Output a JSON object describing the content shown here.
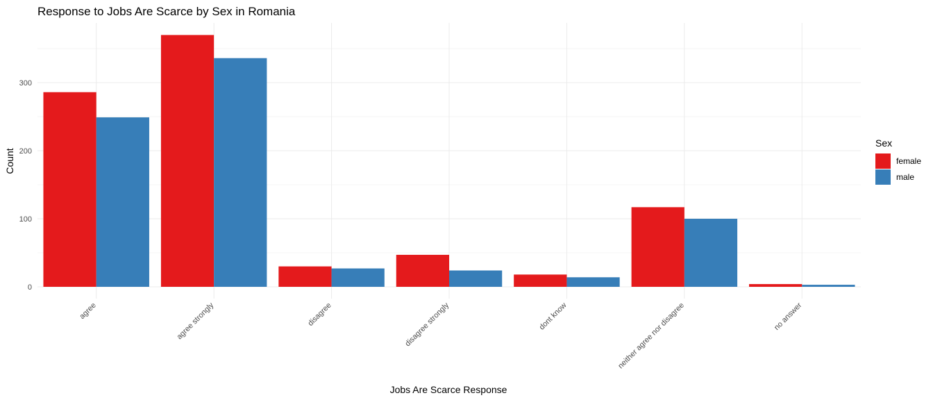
{
  "chart_data": {
    "type": "bar",
    "title": "Response to Jobs Are Scarce by Sex in Romania",
    "xlabel": "Jobs Are Scarce Response",
    "ylabel": "Count",
    "categories": [
      "agree",
      "agree strongly",
      "disagree",
      "disagree strongly",
      "dont know",
      "neither agree nor disagree",
      "no answer"
    ],
    "series": [
      {
        "name": "female",
        "color": "#E41A1C",
        "values": [
          286,
          370,
          30,
          47,
          18,
          117,
          4
        ]
      },
      {
        "name": "male",
        "color": "#377EB8",
        "values": [
          249,
          336,
          27,
          24,
          14,
          100,
          3
        ]
      }
    ],
    "yticks": [
      0,
      100,
      200,
      300
    ],
    "ylim": [
      0,
      380
    ],
    "grid": true,
    "legend_title": "Sex",
    "legend_position": "right"
  }
}
